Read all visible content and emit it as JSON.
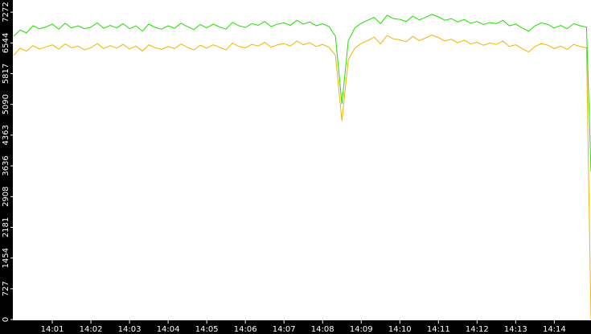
{
  "chart_data": {
    "type": "line",
    "x": [
      "14:00:00",
      "14:00:10",
      "14:00:20",
      "14:00:30",
      "14:00:40",
      "14:00:50",
      "14:01:00",
      "14:01:10",
      "14:01:20",
      "14:01:30",
      "14:01:40",
      "14:01:50",
      "14:02:00",
      "14:02:10",
      "14:02:20",
      "14:02:30",
      "14:02:40",
      "14:02:50",
      "14:03:00",
      "14:03:10",
      "14:03:20",
      "14:03:30",
      "14:03:40",
      "14:03:50",
      "14:04:00",
      "14:04:10",
      "14:04:20",
      "14:04:30",
      "14:04:40",
      "14:04:50",
      "14:05:00",
      "14:05:10",
      "14:05:20",
      "14:05:30",
      "14:05:40",
      "14:05:50",
      "14:06:00",
      "14:06:10",
      "14:06:20",
      "14:06:30",
      "14:06:40",
      "14:06:50",
      "14:07:00",
      "14:07:10",
      "14:07:20",
      "14:07:30",
      "14:07:40",
      "14:07:50",
      "14:08:00",
      "14:08:10",
      "14:08:20",
      "14:08:30",
      "14:08:40",
      "14:08:50",
      "14:09:00",
      "14:09:10",
      "14:09:20",
      "14:09:30",
      "14:09:40",
      "14:09:50",
      "14:10:00",
      "14:10:10",
      "14:10:20",
      "14:10:30",
      "14:10:40",
      "14:10:50",
      "14:11:00",
      "14:11:10",
      "14:11:20",
      "14:11:30",
      "14:11:40",
      "14:11:50",
      "14:12:00",
      "14:12:10",
      "14:12:20",
      "14:12:30",
      "14:12:40",
      "14:12:50",
      "14:13:00",
      "14:13:10",
      "14:13:20",
      "14:13:30",
      "14:13:40",
      "14:13:50",
      "14:14:00",
      "14:14:10",
      "14:14:20",
      "14:14:30",
      "14:14:40",
      "14:14:50",
      "14:14:57"
    ],
    "series": [
      {
        "color": "#22dd00",
        "values": [
          6700,
          6850,
          6780,
          6950,
          6880,
          6920,
          6990,
          6870,
          7010,
          6900,
          6950,
          6880,
          6920,
          7020,
          6890,
          6960,
          6900,
          7000,
          6880,
          6950,
          6820,
          6990,
          6910,
          6870,
          6950,
          6890,
          7010,
          6930,
          6860,
          6980,
          6900,
          6990,
          6920,
          6870,
          7030,
          6950,
          6910,
          7000,
          6960,
          7050,
          6930,
          6990,
          7020,
          6960,
          7080,
          6990,
          7040,
          6950,
          7000,
          6930,
          6700,
          5100,
          6600,
          6900,
          7010,
          7080,
          7150,
          7000,
          7200,
          7120,
          7100,
          7050,
          7180,
          7090,
          7150,
          7220,
          7160,
          7080,
          7120,
          7040,
          7100,
          7010,
          7050,
          6980,
          7030,
          7000,
          7080,
          6950,
          6990,
          6900,
          6820,
          6950,
          7020,
          6980,
          6900,
          6960,
          6880,
          7000,
          6950,
          6920,
          3500
        ]
      },
      {
        "color": "#f0b400",
        "values": [
          6250,
          6420,
          6350,
          6480,
          6400,
          6450,
          6500,
          6400,
          6520,
          6430,
          6470,
          6380,
          6430,
          6530,
          6410,
          6480,
          6420,
          6510,
          6400,
          6470,
          6350,
          6500,
          6430,
          6390,
          6460,
          6410,
          6520,
          6440,
          6380,
          6490,
          6420,
          6500,
          6440,
          6380,
          6540,
          6460,
          6430,
          6510,
          6470,
          6560,
          6440,
          6500,
          6530,
          6470,
          6590,
          6500,
          6550,
          6460,
          6510,
          6440,
          6250,
          4700,
          6150,
          6420,
          6530,
          6600,
          6680,
          6520,
          6720,
          6640,
          6620,
          6570,
          6700,
          6600,
          6660,
          6730,
          6670,
          6590,
          6630,
          6550,
          6610,
          6520,
          6560,
          6490,
          6540,
          6510,
          6590,
          6460,
          6500,
          6410,
          6330,
          6460,
          6530,
          6490,
          6410,
          6470,
          6390,
          6510,
          6460,
          6430,
          0
        ]
      }
    ],
    "xlim": [
      "14:00:00",
      "14:14:57"
    ],
    "xticks": [
      "14:01",
      "14:02",
      "14:03",
      "14:04",
      "14:05",
      "14:06",
      "14:07",
      "14:08",
      "14:09",
      "14:10",
      "14:11",
      "14:12",
      "14:13",
      "14:14"
    ],
    "ylim": [
      0,
      7560
    ],
    "yticks": [
      0,
      727,
      1454,
      2181,
      2908,
      3636,
      4363,
      5090,
      5817,
      6544,
      7272
    ]
  }
}
